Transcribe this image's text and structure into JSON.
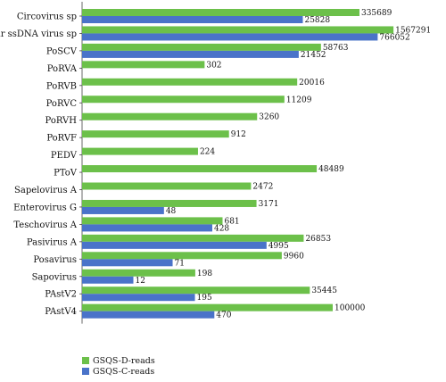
{
  "chart_data": {
    "type": "bar",
    "orientation": "horizontal",
    "categories": [
      "Circovirus sp",
      "Circular ssDNA virus sp",
      "PoSCV",
      "PoRVA",
      "PoRVB",
      "PoRVC",
      "PoRVH",
      "PoRVF",
      "PEDV",
      "PToV",
      "Sapelovirus A",
      "Enterovirus G",
      "Teschovirus A",
      "Pasivirus A",
      "Posavirus",
      "Sapovirus",
      "PAstV2",
      "PAstV4"
    ],
    "series": [
      {
        "name": "GSQS-D-reads",
        "color": "#6cc04a",
        "values": [
          335689,
          1567291,
          58763,
          302,
          20016,
          11209,
          3260,
          912,
          224,
          48489,
          2472,
          3171,
          681,
          26853,
          9960,
          198,
          35445,
          100000
        ],
        "labels": [
          "335689",
          "1567291",
          "58763",
          "302",
          "20016",
          "11209",
          "3260",
          "912",
          "224",
          "48489",
          "2472",
          "3171",
          "681",
          "26853",
          "9960",
          "198",
          "35445",
          "100000"
        ]
      },
      {
        "name": "GSQS-C-reads",
        "color": "#4a73c9",
        "values": [
          25828,
          766052,
          21452,
          null,
          null,
          null,
          null,
          null,
          null,
          null,
          null,
          48,
          428,
          4995,
          71,
          12,
          195,
          470
        ],
        "labels": [
          "25828",
          "766052",
          "21452",
          "",
          "",
          "",
          "",
          "",
          "",
          "",
          "",
          "48",
          "428",
          "4995",
          "71",
          "12",
          "195",
          "470"
        ]
      }
    ],
    "xscale": "log",
    "grid": false,
    "legend_position": "bottom-left"
  }
}
